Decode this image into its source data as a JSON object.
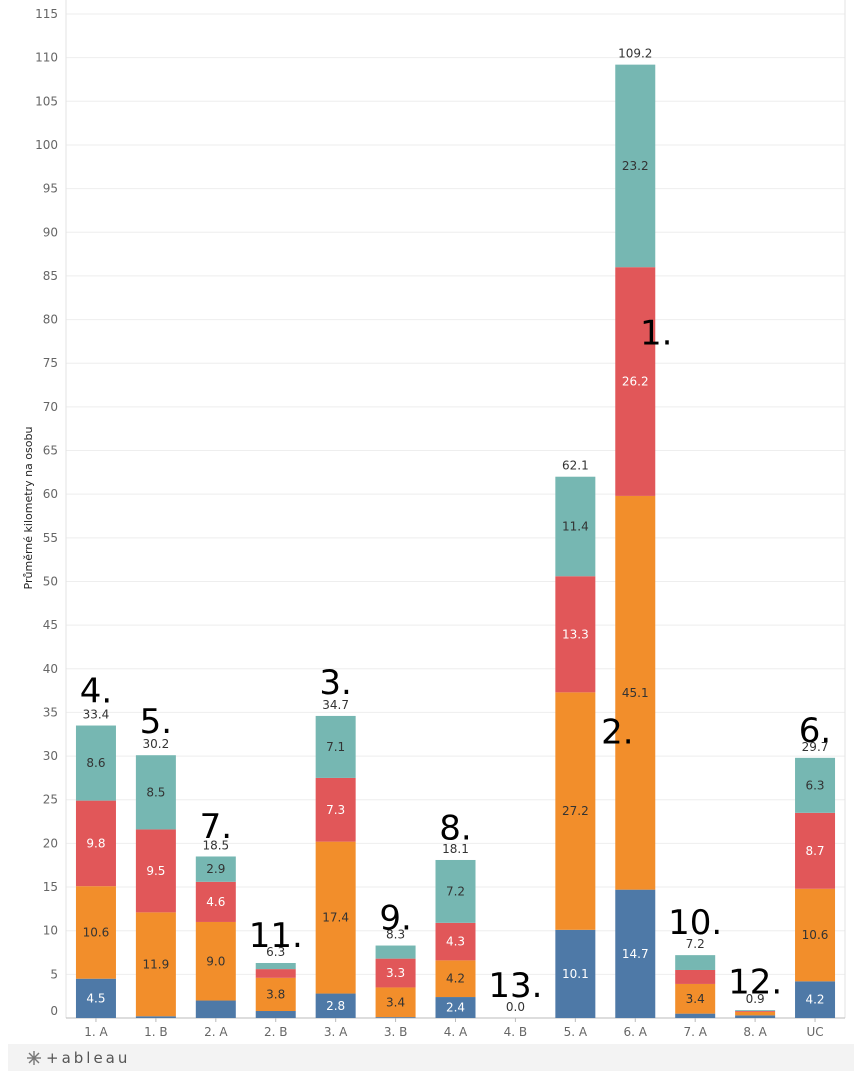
{
  "chart_data": {
    "type": "bar",
    "stacked": true,
    "title": "",
    "xlabel": "",
    "ylabel": "Průměrné kilometry na osobu",
    "ylim": [
      0,
      115
    ],
    "yticks": [
      "0",
      "5",
      "10",
      "15",
      "20",
      "25",
      "30",
      "35",
      "40",
      "45",
      "50",
      "55",
      "60",
      "65",
      "70",
      "75",
      "80",
      "85",
      "90",
      "95",
      "100",
      "105",
      "110",
      "115"
    ],
    "grid": true,
    "categories": [
      "1. A",
      "1. B",
      "2. A",
      "2. B",
      "3. A",
      "3. B",
      "4. A",
      "4. B",
      "5. A",
      "6. A",
      "7. A",
      "8. A",
      "UC"
    ],
    "series": [
      {
        "color": "#4e79a7",
        "label_color": "#ffffff",
        "values": [
          4.5,
          0.2,
          2.0,
          0.8,
          2.8,
          0.1,
          2.4,
          0.0,
          10.1,
          14.7,
          0.5,
          0.3,
          4.2
        ],
        "labels": [
          "4.5",
          "",
          "",
          "",
          "2.8",
          "",
          "2.4",
          "",
          "10.1",
          "14.7",
          "",
          "",
          "4.2"
        ]
      },
      {
        "color": "#f28e2b",
        "label_color": "#333333",
        "values": [
          10.6,
          11.9,
          9.0,
          3.8,
          17.4,
          3.4,
          4.2,
          0.0,
          27.2,
          45.1,
          3.4,
          0.4,
          10.6
        ],
        "labels": [
          "10.6",
          "11.9",
          "9.0",
          "3.8",
          "17.4",
          "3.4",
          "4.2",
          "",
          "27.2",
          "45.1",
          "3.4",
          "",
          "10.6"
        ]
      },
      {
        "color": "#e15759",
        "label_color": "#ffffff",
        "values": [
          9.8,
          9.5,
          4.6,
          1.0,
          7.3,
          3.3,
          4.3,
          0.0,
          13.3,
          26.2,
          1.6,
          0.1,
          8.7
        ],
        "labels": [
          "9.8",
          "9.5",
          "4.6",
          "",
          "7.3",
          "3.3",
          "4.3",
          "",
          "13.3",
          "26.2",
          "",
          "",
          "8.7"
        ]
      },
      {
        "color": "#76b7b2",
        "label_color": "#333333",
        "values": [
          8.6,
          8.5,
          2.9,
          0.7,
          7.1,
          1.5,
          7.2,
          0.0,
          11.4,
          23.2,
          1.7,
          0.1,
          6.3
        ],
        "labels": [
          "8.6",
          "8.5",
          "2.9",
          "",
          "7.1",
          "",
          "7.2",
          "",
          "11.4",
          "23.2",
          "",
          "",
          "6.3"
        ]
      }
    ],
    "totals": [
      "33.4",
      "30.2",
      "18.5",
      "6.3",
      "34.7",
      "8.3",
      "18.1",
      "0.0",
      "62.1",
      "109.2",
      "7.2",
      "0.9",
      "29.7"
    ],
    "annotations": [
      {
        "text": "4.",
        "category": "1. A",
        "y": 37.5
      },
      {
        "text": "5.",
        "category": "1. B",
        "y": 34.0
      },
      {
        "text": "7.",
        "category": "2. A",
        "y": 22.0
      },
      {
        "text": "11.",
        "category": "2. B",
        "y": 9.5
      },
      {
        "text": "3.",
        "category": "3. A",
        "y": 38.5
      },
      {
        "text": "9.",
        "category": "3. B",
        "y": 11.5
      },
      {
        "text": "8.",
        "category": "4. A",
        "y": 21.8
      },
      {
        "text": "13.",
        "category": "4. B",
        "y": 3.8
      },
      {
        "text": "2.",
        "category": "5. A",
        "y": 32.8,
        "offset": 0.7
      },
      {
        "text": "1.",
        "category": "6. A",
        "y": 78.5,
        "offset": 0.35
      },
      {
        "text": "10.",
        "category": "7. A",
        "y": 11.0
      },
      {
        "text": "12.",
        "category": "8. A",
        "y": 4.2
      },
      {
        "text": "6.",
        "category": "UC",
        "y": 33.0
      }
    ]
  },
  "footer": {
    "logo_text": "+ableau"
  }
}
